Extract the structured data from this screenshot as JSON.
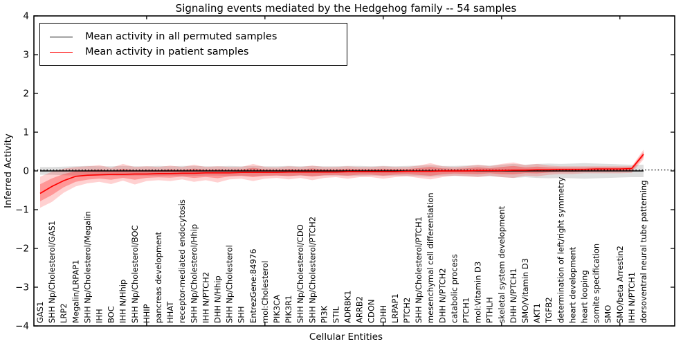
{
  "chart_data": {
    "type": "line",
    "title": "Signaling events mediated by the Hedgehog family -- 54 samples",
    "xlabel": "Cellular Entities",
    "ylabel": "Inferred Activity",
    "ylim": [
      -4,
      4
    ],
    "yticks": [
      -4,
      -3,
      -2,
      -1,
      0,
      1,
      2,
      3,
      4
    ],
    "xtick_category_indices": [
      9,
      19,
      29,
      39,
      49
    ],
    "grid": false,
    "legend_position": "upper left",
    "zero_reference_line": {
      "y": 0,
      "style": "dotted",
      "color": "#000000"
    },
    "categories": [
      "GAS1",
      "SHH Np/Cholesterol/GAS1",
      "LRP2",
      "Megalin/LRPAP1",
      "SHH Np/Cholesterol/Megalin",
      "IHH",
      "BOC",
      "IHH N/Hhip",
      "SHH Np/Cholesterol/BOC",
      "HHIP",
      "pancreas development",
      "HHAT",
      "receptor-mediated endocytosis",
      "SHH Np/Cholesterol/Hhip",
      "IHH N/PTCH2",
      "DHH N/Hhip",
      "SHH Np/Cholesterol",
      "SHH",
      "EntrezGene:84976",
      "mol:Cholesterol",
      "PIK3CA",
      "PIK3R1",
      "SHH Np/Cholesterol/CDO",
      "SHH Np/Cholesterol/PTCH2",
      "PI3K",
      "STIL",
      "ADRBK1",
      "ARRB2",
      "CDON",
      "DHH",
      "LRPAP1",
      "PTCH2",
      "SHH Np/Cholesterol/PTCH1",
      "mesenchymal cell differentiation",
      "DHH N/PTCH2",
      "catabolic process",
      "PTCH1",
      "mol:Vitamin D3",
      "PTHLH",
      "skeletal system development",
      "DHH N/PTCH1",
      "SMO/Vitamin D3",
      "AKT1",
      "TGFB2",
      "determination of left/right symmetry",
      "heart development",
      "heart looping",
      "somite specification",
      "SMO",
      "SMO/beta Arrestin2",
      "IHH N/PTCH1",
      "dorsoventral neural tube patterning"
    ],
    "series": [
      {
        "name": "Mean activity in all permuted samples",
        "color": "#000000",
        "band_color": "#000000",
        "band_opacity": 0.13,
        "values": [
          0,
          0,
          0,
          0,
          0,
          0,
          0,
          0,
          0,
          0,
          0,
          0,
          0,
          0,
          0,
          0,
          0,
          0,
          0,
          0,
          0,
          0,
          0,
          0,
          0,
          0,
          0,
          0,
          0,
          0,
          0,
          0,
          0,
          0,
          0,
          0,
          0,
          0,
          0,
          0,
          0,
          0,
          0,
          0,
          0,
          0,
          0,
          0,
          0,
          0,
          0,
          0
        ],
        "band_upper": [
          0.1,
          0.1,
          0.11,
          0.12,
          0.13,
          0.12,
          0.12,
          0.13,
          0.12,
          0.12,
          0.13,
          0.12,
          0.13,
          0.13,
          0.12,
          0.12,
          0.13,
          0.12,
          0.13,
          0.12,
          0.12,
          0.13,
          0.12,
          0.13,
          0.12,
          0.12,
          0.13,
          0.13,
          0.12,
          0.13,
          0.12,
          0.13,
          0.14,
          0.15,
          0.13,
          0.13,
          0.14,
          0.15,
          0.14,
          0.16,
          0.18,
          0.16,
          0.18,
          0.19,
          0.18,
          0.19,
          0.2,
          0.19,
          0.18,
          0.17,
          0.16,
          0.16
        ],
        "band_lower": [
          -0.1,
          -0.1,
          -0.11,
          -0.12,
          -0.13,
          -0.12,
          -0.12,
          -0.13,
          -0.12,
          -0.12,
          -0.13,
          -0.12,
          -0.13,
          -0.13,
          -0.12,
          -0.12,
          -0.13,
          -0.12,
          -0.13,
          -0.12,
          -0.12,
          -0.13,
          -0.12,
          -0.13,
          -0.12,
          -0.12,
          -0.13,
          -0.13,
          -0.12,
          -0.13,
          -0.12,
          -0.13,
          -0.14,
          -0.15,
          -0.13,
          -0.13,
          -0.14,
          -0.15,
          -0.14,
          -0.16,
          -0.18,
          -0.16,
          -0.18,
          -0.19,
          -0.18,
          -0.19,
          -0.2,
          -0.19,
          -0.18,
          -0.17,
          -0.16,
          -0.16
        ]
      },
      {
        "name": "Mean activity in patient samples",
        "color": "#ff0000",
        "band_color": "#ff0000",
        "band_opacity": 0.18,
        "values": [
          -0.58,
          -0.4,
          -0.25,
          -0.14,
          -0.11,
          -0.1,
          -0.09,
          -0.09,
          -0.08,
          -0.08,
          -0.07,
          -0.07,
          -0.06,
          -0.06,
          -0.05,
          -0.05,
          -0.05,
          -0.04,
          -0.04,
          -0.04,
          -0.04,
          -0.03,
          -0.03,
          -0.03,
          -0.03,
          -0.03,
          -0.02,
          -0.02,
          -0.02,
          -0.02,
          -0.02,
          -0.01,
          -0.01,
          -0.01,
          0.0,
          0.0,
          0.0,
          0.01,
          0.01,
          0.01,
          0.02,
          0.02,
          0.03,
          0.03,
          0.04,
          0.04,
          0.04,
          0.05,
          0.05,
          0.05,
          0.06,
          0.43
        ],
        "band_upper": [
          -0.15,
          -0.02,
          0.06,
          0.1,
          0.12,
          0.15,
          0.08,
          0.18,
          0.1,
          0.12,
          0.1,
          0.14,
          0.1,
          0.16,
          0.1,
          0.12,
          0.1,
          0.1,
          0.18,
          0.1,
          0.09,
          0.12,
          0.1,
          0.14,
          0.1,
          0.1,
          0.12,
          0.1,
          0.1,
          0.12,
          0.1,
          0.1,
          0.14,
          0.2,
          0.12,
          0.1,
          0.12,
          0.16,
          0.12,
          0.18,
          0.22,
          0.15,
          0.18,
          0.14,
          0.12,
          0.12,
          0.12,
          0.12,
          0.12,
          0.12,
          0.12,
          0.55
        ],
        "band_lower": [
          -0.95,
          -0.8,
          -0.56,
          -0.4,
          -0.32,
          -0.28,
          -0.34,
          -0.25,
          -0.35,
          -0.26,
          -0.24,
          -0.26,
          -0.22,
          -0.28,
          -0.24,
          -0.3,
          -0.22,
          -0.2,
          -0.26,
          -0.2,
          -0.18,
          -0.22,
          -0.18,
          -0.24,
          -0.18,
          -0.16,
          -0.2,
          -0.16,
          -0.16,
          -0.2,
          -0.16,
          -0.14,
          -0.18,
          -0.22,
          -0.16,
          -0.12,
          -0.14,
          -0.16,
          -0.12,
          -0.16,
          -0.18,
          -0.12,
          -0.14,
          -0.1,
          -0.08,
          -0.08,
          -0.06,
          -0.06,
          -0.06,
          -0.06,
          -0.05,
          0.3
        ]
      }
    ]
  }
}
